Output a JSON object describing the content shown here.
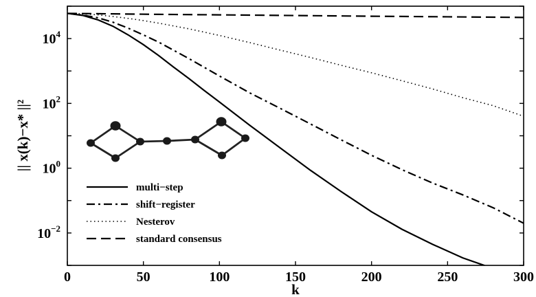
{
  "chart_data": {
    "type": "line",
    "xlabel": "k",
    "ylabel": "|| x(k)−x* ||²",
    "xlim": [
      0,
      300
    ],
    "ylim": [
      0.001,
      100000
    ],
    "y_scale": "log",
    "grid": false,
    "legend_position": "bottom-left",
    "x_ticks": [
      {
        "value": 0,
        "label": "0"
      },
      {
        "value": 50,
        "label": "50"
      },
      {
        "value": 100,
        "label": "100"
      },
      {
        "value": 150,
        "label": "150"
      },
      {
        "value": 200,
        "label": "200"
      },
      {
        "value": 250,
        "label": "250"
      },
      {
        "value": 300,
        "label": "300"
      }
    ],
    "y_ticks": [
      {
        "value": 0.01,
        "base": "10",
        "exp": "−2"
      },
      {
        "value": 1,
        "base": "10",
        "exp": "0"
      },
      {
        "value": 100,
        "base": "10",
        "exp": "2"
      },
      {
        "value": 10000,
        "base": "10",
        "exp": "4"
      }
    ],
    "series": [
      {
        "name": "multi−step",
        "style": "solid",
        "color": "#000000",
        "x": [
          0,
          10,
          20,
          30,
          40,
          50,
          60,
          70,
          80,
          90,
          100,
          120,
          140,
          160,
          180,
          200,
          220,
          240,
          260,
          280,
          300
        ],
        "y": [
          60000,
          52000,
          38000,
          24000,
          13000,
          6500,
          3000,
          1300,
          580,
          250,
          110,
          21,
          4.2,
          0.85,
          0.19,
          0.045,
          0.013,
          0.0045,
          0.0017,
          0.0008,
          0.0004
        ]
      },
      {
        "name": "shift−register",
        "style": "dash-dot",
        "color": "#000000",
        "x": [
          0,
          10,
          20,
          30,
          40,
          50,
          60,
          80,
          100,
          120,
          140,
          160,
          180,
          200,
          220,
          240,
          260,
          280,
          300
        ],
        "y": [
          60000,
          53000,
          44000,
          32000,
          21000,
          13000,
          7800,
          2400,
          700,
          210,
          70,
          23,
          7.5,
          2.5,
          0.9,
          0.35,
          0.15,
          0.06,
          0.02
        ]
      },
      {
        "name": "Nesterov",
        "style": "dotted",
        "color": "#000000",
        "x": [
          0,
          10,
          20,
          30,
          40,
          50,
          60,
          80,
          100,
          120,
          140,
          160,
          180,
          200,
          220,
          240,
          260,
          280,
          300
        ],
        "y": [
          60000,
          58000,
          54000,
          48000,
          42000,
          36000,
          30000,
          20000,
          12500,
          7500,
          4400,
          2600,
          1500,
          880,
          500,
          280,
          150,
          85,
          40
        ]
      },
      {
        "name": "standard consensus",
        "style": "dashed",
        "color": "#000000",
        "x": [
          0,
          30,
          60,
          100,
          150,
          200,
          250,
          300
        ],
        "y": [
          60000,
          58000,
          56000,
          54000,
          51500,
          49000,
          47000,
          45000
        ]
      }
    ],
    "inset_graph": {
      "nodes": [
        {
          "id": "n1",
          "large": false
        },
        {
          "id": "n2",
          "large": true
        },
        {
          "id": "n3",
          "large": false
        },
        {
          "id": "n4",
          "large": false
        },
        {
          "id": "n5",
          "large": false
        },
        {
          "id": "n6",
          "large": false
        },
        {
          "id": "n7",
          "large": true
        },
        {
          "id": "n8",
          "large": false
        },
        {
          "id": "n9",
          "large": false
        }
      ],
      "edges": [
        [
          "n1",
          "n2"
        ],
        [
          "n1",
          "n3"
        ],
        [
          "n2",
          "n4"
        ],
        [
          "n3",
          "n4"
        ],
        [
          "n4",
          "n5"
        ],
        [
          "n5",
          "n6"
        ],
        [
          "n6",
          "n7"
        ],
        [
          "n6",
          "n8"
        ],
        [
          "n7",
          "n9"
        ],
        [
          "n8",
          "n9"
        ]
      ]
    }
  }
}
